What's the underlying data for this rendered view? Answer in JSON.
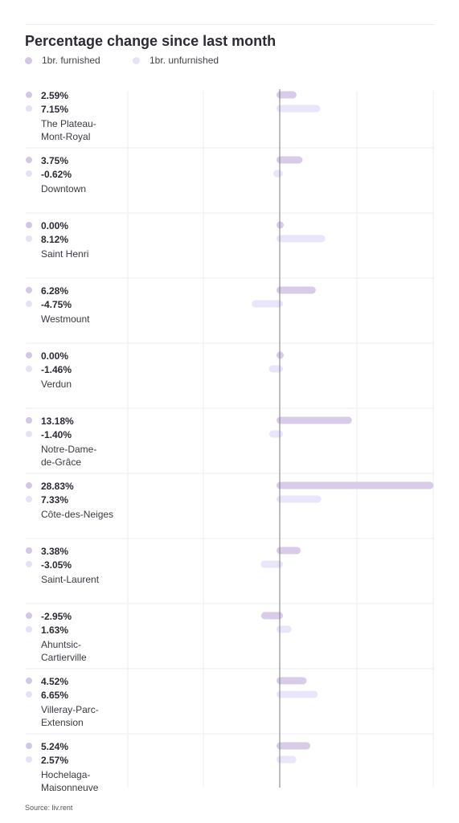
{
  "title": "Percentage change since last month",
  "source": "Source: liv.rent",
  "colors": {
    "furnished": "#d8cce9",
    "unfurnished": "#e9e6fb",
    "grid": "#eeeef2",
    "axis": "#7a7a82",
    "text": "#2b2b33"
  },
  "legend": [
    {
      "label": "1br. furnished",
      "color": "#d2c7e6"
    },
    {
      "label": "1br. unfurnished",
      "color": "#e5e1f8"
    }
  ],
  "chart_data": {
    "type": "bar",
    "orientation": "horizontal",
    "title": "Percentage change since last month",
    "categories": [
      "The Plateau-Mont-Royal",
      "Downtown",
      "Saint Henri",
      "Westmount",
      "Verdun",
      "Notre-Dame-de-Grâce",
      "Côte-des-Neiges",
      "Saint-Laurent",
      "Ahuntsic-Cartierville",
      "Villeray-Parc-Extension",
      "Hochelaga-Maisonneuve"
    ],
    "category_lines": [
      [
        "The Plateau-",
        "Mont-Royal"
      ],
      [
        "Downtown"
      ],
      [
        "Saint Henri"
      ],
      [
        "Westmount"
      ],
      [
        "Verdun"
      ],
      [
        "Notre-Dame-",
        "de-Grâce"
      ],
      [
        "Côte-des-Neiges"
      ],
      [
        "Saint-Laurent"
      ],
      [
        "Ahuntsic-",
        "Cartierville"
      ],
      [
        "Villeray-Parc-",
        "Extension"
      ],
      [
        "Hochelaga-",
        "Maisonneuve"
      ]
    ],
    "series": [
      {
        "name": "1br. furnished",
        "values": [
          2.59,
          3.75,
          0.0,
          6.28,
          0.0,
          13.18,
          28.83,
          3.38,
          -2.95,
          4.52,
          5.24
        ],
        "labels": [
          "2.59%",
          "3.75%",
          "0.00%",
          "6.28%",
          "0.00%",
          "13.18%",
          "28.83%",
          "3.38%",
          "-2.95%",
          "4.52%",
          "5.24%"
        ]
      },
      {
        "name": "1br. unfurnished",
        "values": [
          7.15,
          -0.62,
          8.12,
          -4.75,
          -1.46,
          -1.4,
          7.33,
          -3.05,
          1.63,
          6.65,
          2.57
        ],
        "labels": [
          "7.15%",
          "-0.62%",
          "8.12%",
          "-4.75%",
          "-1.46%",
          "-1.40%",
          "7.33%",
          "-3.05%",
          "1.63%",
          "6.65%",
          "2.57%"
        ]
      }
    ],
    "xlim": [
      -6,
      29
    ],
    "grid": true,
    "legend_position": "top-left"
  }
}
